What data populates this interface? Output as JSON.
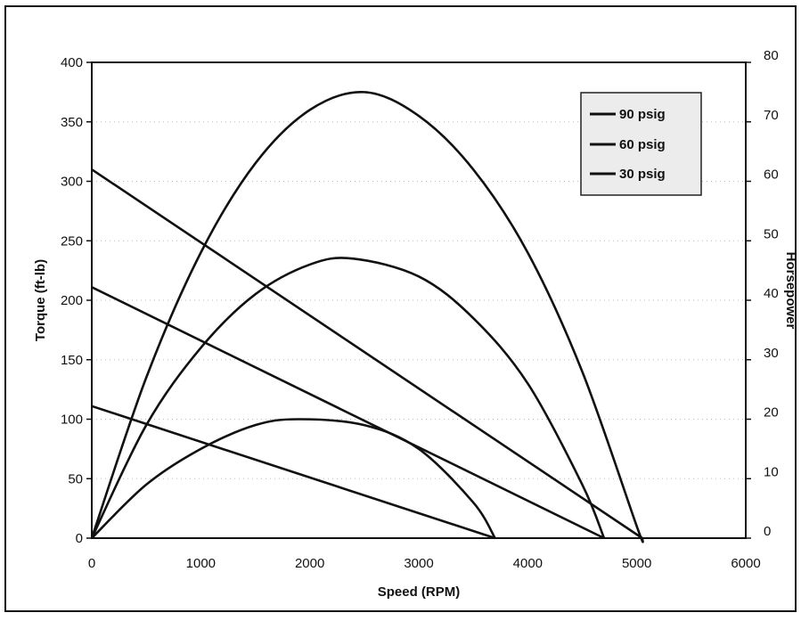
{
  "chart_data": {
    "type": "line",
    "title": "",
    "xlabel": "Speed (RPM)",
    "ylabel": "Torque (ft-lb)",
    "y2label": "Horsepower",
    "xlim": [
      0,
      6000
    ],
    "ylim": [
      0,
      400
    ],
    "y2lim": [
      0,
      80
    ],
    "xticks": [
      "0",
      "1000",
      "2000",
      "3000",
      "4000",
      "5000",
      "6000"
    ],
    "yticks": [
      "0",
      "50",
      "100",
      "150",
      "200",
      "250",
      "300",
      "350",
      "400"
    ],
    "y2ticks": [
      "0",
      "10",
      "20",
      "30",
      "40",
      "50",
      "60",
      "70",
      "80"
    ],
    "grid": "dotted horizontal",
    "legend_position": "top-right",
    "legend": [
      "90 psig",
      "60 psig",
      "30 psig"
    ],
    "series": [
      {
        "name": "90 psig",
        "axis": "left",
        "kind": "torque",
        "x": [
          0,
          5050
        ],
        "y": [
          310,
          0
        ]
      },
      {
        "name": "60 psig",
        "axis": "left",
        "kind": "torque",
        "x": [
          0,
          4700
        ],
        "y": [
          211,
          0
        ]
      },
      {
        "name": "30 psig",
        "axis": "left",
        "kind": "torque",
        "x": [
          0,
          3700
        ],
        "y": [
          111,
          0
        ]
      },
      {
        "name": "90 psig",
        "axis": "right",
        "kind": "horsepower",
        "x": [
          0,
          500,
          1000,
          1500,
          2000,
          2500,
          3000,
          3500,
          4000,
          4500,
          5000,
          5050
        ],
        "y": [
          0,
          27,
          48,
          63,
          72,
          75,
          71,
          62,
          48,
          28,
          2,
          0
        ]
      },
      {
        "name": "60 psig",
        "axis": "right",
        "kind": "horsepower",
        "x": [
          0,
          500,
          1000,
          1500,
          2000,
          2400,
          3000,
          3500,
          4000,
          4500,
          4700
        ],
        "y": [
          0,
          19,
          32,
          41,
          46,
          47,
          44,
          37,
          26,
          9,
          0
        ]
      },
      {
        "name": "30 psig",
        "axis": "right",
        "kind": "horsepower",
        "x": [
          0,
          500,
          1000,
          1500,
          1900,
          2500,
          3000,
          3500,
          3700
        ],
        "y": [
          0,
          9,
          15,
          19,
          20,
          19,
          15,
          6,
          0
        ]
      }
    ]
  }
}
